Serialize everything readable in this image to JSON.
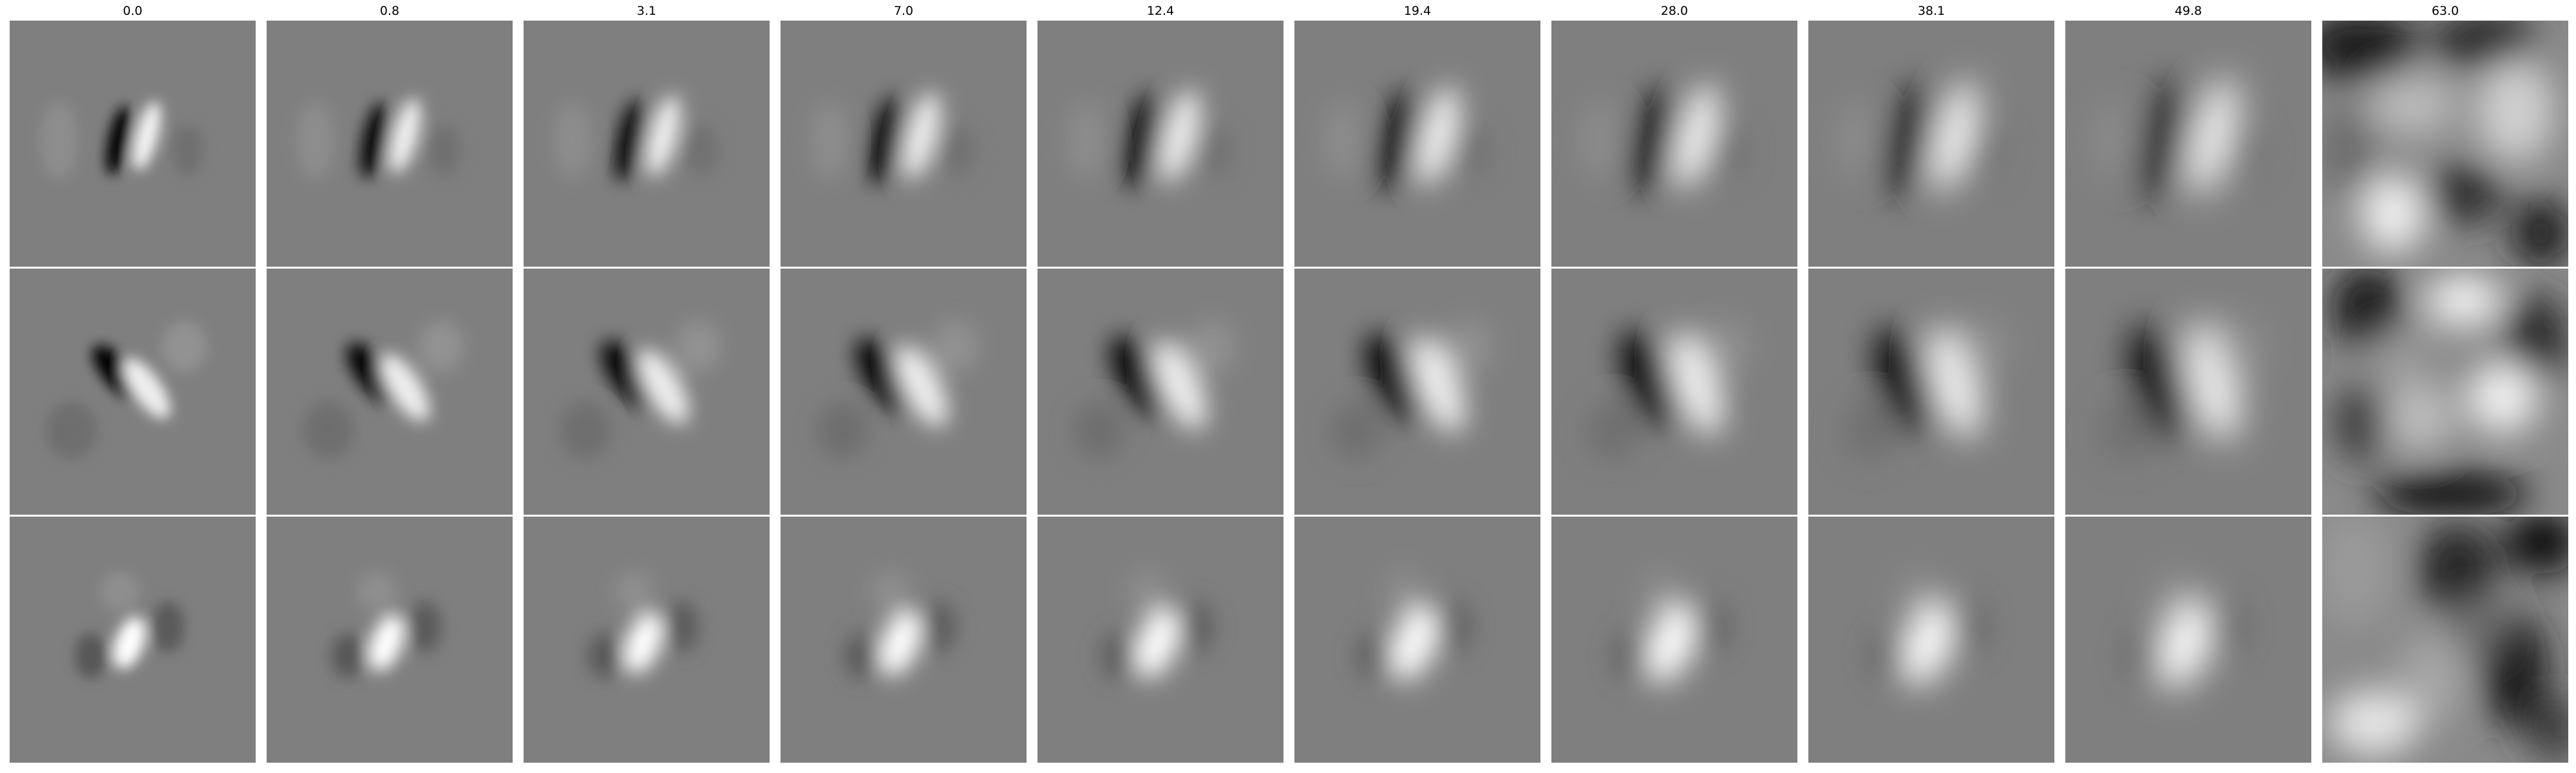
{
  "figure": {
    "column_titles": [
      "0.0",
      "0.8",
      "3.1",
      "7.0",
      "12.4",
      "19.4",
      "28.0",
      "38.1",
      "49.8",
      "63.0"
    ],
    "rows": 3,
    "colormap": "gray",
    "background_color": "#7f7f7f"
  }
}
